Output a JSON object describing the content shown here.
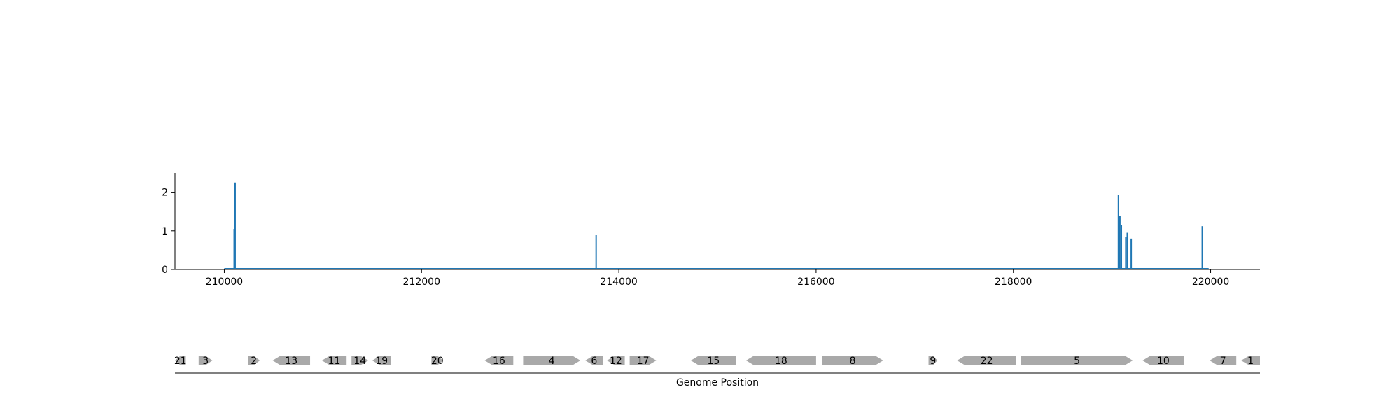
{
  "chart_data": [
    {
      "type": "line",
      "title": "",
      "xlabel": "",
      "ylabel": "",
      "xlim": [
        209500,
        220500
      ],
      "ylim": [
        0,
        2.5
      ],
      "xticks": [
        210000,
        212000,
        214000,
        216000,
        218000,
        220000
      ],
      "xtick_labels": [
        "210000",
        "212000",
        "214000",
        "216000",
        "218000",
        "220000"
      ],
      "yticks": [
        0,
        1,
        2
      ],
      "ytick_labels": [
        "0",
        "1",
        "2"
      ],
      "grid": false,
      "color": "#1f77b4",
      "peaks": [
        {
          "x": 210100,
          "y": 1.05
        },
        {
          "x": 210110,
          "y": 2.25
        },
        {
          "x": 213770,
          "y": 0.9
        },
        {
          "x": 219065,
          "y": 1.92
        },
        {
          "x": 219080,
          "y": 1.38
        },
        {
          "x": 219095,
          "y": 1.15
        },
        {
          "x": 219140,
          "y": 0.85
        },
        {
          "x": 219155,
          "y": 0.95
        },
        {
          "x": 219195,
          "y": 0.8
        },
        {
          "x": 219915,
          "y": 1.12
        }
      ]
    },
    {
      "type": "gene-track",
      "xlabel": "Genome Position",
      "xlim": [
        209500,
        220500
      ],
      "color": "#a9a9a9",
      "genes": [
        {
          "label": "21",
          "start": 209500,
          "end": 209610,
          "strand": "-"
        },
        {
          "label": "3",
          "start": 209740,
          "end": 209880,
          "strand": "+"
        },
        {
          "label": "2",
          "start": 210240,
          "end": 210360,
          "strand": "+"
        },
        {
          "label": "13",
          "start": 210490,
          "end": 210870,
          "strand": "-"
        },
        {
          "label": "11",
          "start": 210990,
          "end": 211240,
          "strand": "-"
        },
        {
          "label": "14",
          "start": 211290,
          "end": 211460,
          "strand": "+"
        },
        {
          "label": "19",
          "start": 211500,
          "end": 211690,
          "strand": "-"
        },
        {
          "label": "20",
          "start": 212100,
          "end": 212220,
          "strand": "+"
        },
        {
          "label": "16",
          "start": 212640,
          "end": 212930,
          "strand": "-"
        },
        {
          "label": "4",
          "start": 213030,
          "end": 213610,
          "strand": "+"
        },
        {
          "label": "6",
          "start": 213660,
          "end": 213840,
          "strand": "-"
        },
        {
          "label": "12",
          "start": 213880,
          "end": 214060,
          "strand": "-"
        },
        {
          "label": "17",
          "start": 214110,
          "end": 214380,
          "strand": "+"
        },
        {
          "label": "15",
          "start": 214730,
          "end": 215190,
          "strand": "-"
        },
        {
          "label": "18",
          "start": 215290,
          "end": 216000,
          "strand": "-"
        },
        {
          "label": "8",
          "start": 216060,
          "end": 216680,
          "strand": "+"
        },
        {
          "label": "9",
          "start": 217140,
          "end": 217230,
          "strand": "+"
        },
        {
          "label": "22",
          "start": 217430,
          "end": 218030,
          "strand": "-"
        },
        {
          "label": "5",
          "start": 218080,
          "end": 219210,
          "strand": "+"
        },
        {
          "label": "10",
          "start": 219310,
          "end": 219730,
          "strand": "-"
        },
        {
          "label": "7",
          "start": 219990,
          "end": 220260,
          "strand": "-"
        },
        {
          "label": "1",
          "start": 220310,
          "end": 220500,
          "strand": "-"
        }
      ]
    }
  ]
}
